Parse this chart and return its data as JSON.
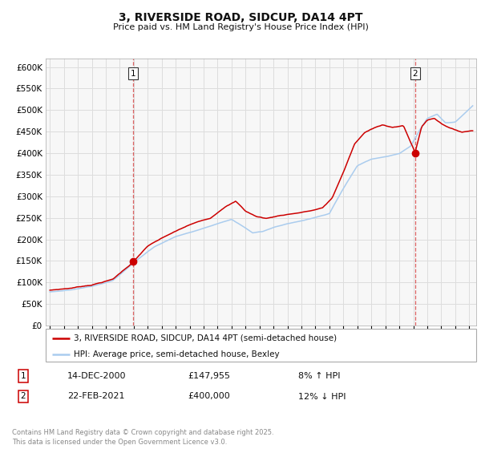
{
  "title": "3, RIVERSIDE ROAD, SIDCUP, DA14 4PT",
  "subtitle": "Price paid vs. HM Land Registry's House Price Index (HPI)",
  "ylim": [
    0,
    620000
  ],
  "yticks": [
    0,
    50000,
    100000,
    150000,
    200000,
    250000,
    300000,
    350000,
    400000,
    450000,
    500000,
    550000,
    600000
  ],
  "xlim_start": 1994.7,
  "xlim_end": 2025.5,
  "legend_label_red": "3, RIVERSIDE ROAD, SIDCUP, DA14 4PT (semi-detached house)",
  "legend_label_blue": "HPI: Average price, semi-detached house, Bexley",
  "marker1_x": 2000.96,
  "marker1_y": 147955,
  "marker1_label": "1",
  "marker2_x": 2021.13,
  "marker2_y": 400000,
  "marker2_label": "2",
  "annotation1_date": "14-DEC-2000",
  "annotation1_price": "£147,955",
  "annotation1_hpi": "8% ↑ HPI",
  "annotation2_date": "22-FEB-2021",
  "annotation2_price": "£400,000",
  "annotation2_hpi": "12% ↓ HPI",
  "footer": "Contains HM Land Registry data © Crown copyright and database right 2025.\nThis data is licensed under the Open Government Licence v3.0.",
  "red_color": "#cc0000",
  "blue_color": "#aaccee",
  "grid_color": "#dddddd",
  "background_color": "#ffffff",
  "plot_bg_color": "#f7f7f7",
  "red_key_years": [
    1995.0,
    1996.5,
    1998.0,
    1999.5,
    2000.96,
    2002.0,
    2003.5,
    2005.0,
    2006.5,
    2007.5,
    2008.3,
    2009.0,
    2009.8,
    2010.5,
    2011.5,
    2012.5,
    2013.5,
    2014.5,
    2015.2,
    2016.0,
    2016.8,
    2017.5,
    2018.2,
    2018.8,
    2019.5,
    2020.3,
    2021.13,
    2021.6,
    2022.0,
    2022.5,
    2023.0,
    2023.8,
    2024.5,
    2025.25
  ],
  "red_key_vals": [
    82000,
    87000,
    95000,
    108000,
    147955,
    185000,
    210000,
    232000,
    248000,
    275000,
    288000,
    265000,
    252000,
    248000,
    255000,
    260000,
    265000,
    272000,
    295000,
    355000,
    420000,
    445000,
    458000,
    465000,
    458000,
    462000,
    400000,
    460000,
    475000,
    480000,
    468000,
    455000,
    448000,
    452000
  ],
  "hpi_key_years": [
    1995.0,
    1996.5,
    1998.0,
    1999.5,
    2001.0,
    2002.5,
    2004.0,
    2005.5,
    2007.0,
    2008.0,
    2008.8,
    2009.5,
    2010.2,
    2011.0,
    2012.0,
    2013.0,
    2014.0,
    2015.0,
    2016.0,
    2017.0,
    2018.0,
    2019.0,
    2020.0,
    2020.8,
    2021.5,
    2022.0,
    2022.7,
    2023.3,
    2024.0,
    2025.25
  ],
  "hpi_key_vals": [
    78000,
    83000,
    92000,
    106000,
    147000,
    185000,
    208000,
    222000,
    238000,
    248000,
    232000,
    217000,
    220000,
    230000,
    238000,
    244000,
    252000,
    260000,
    318000,
    370000,
    385000,
    390000,
    398000,
    415000,
    455000,
    480000,
    490000,
    470000,
    472000,
    510000
  ]
}
